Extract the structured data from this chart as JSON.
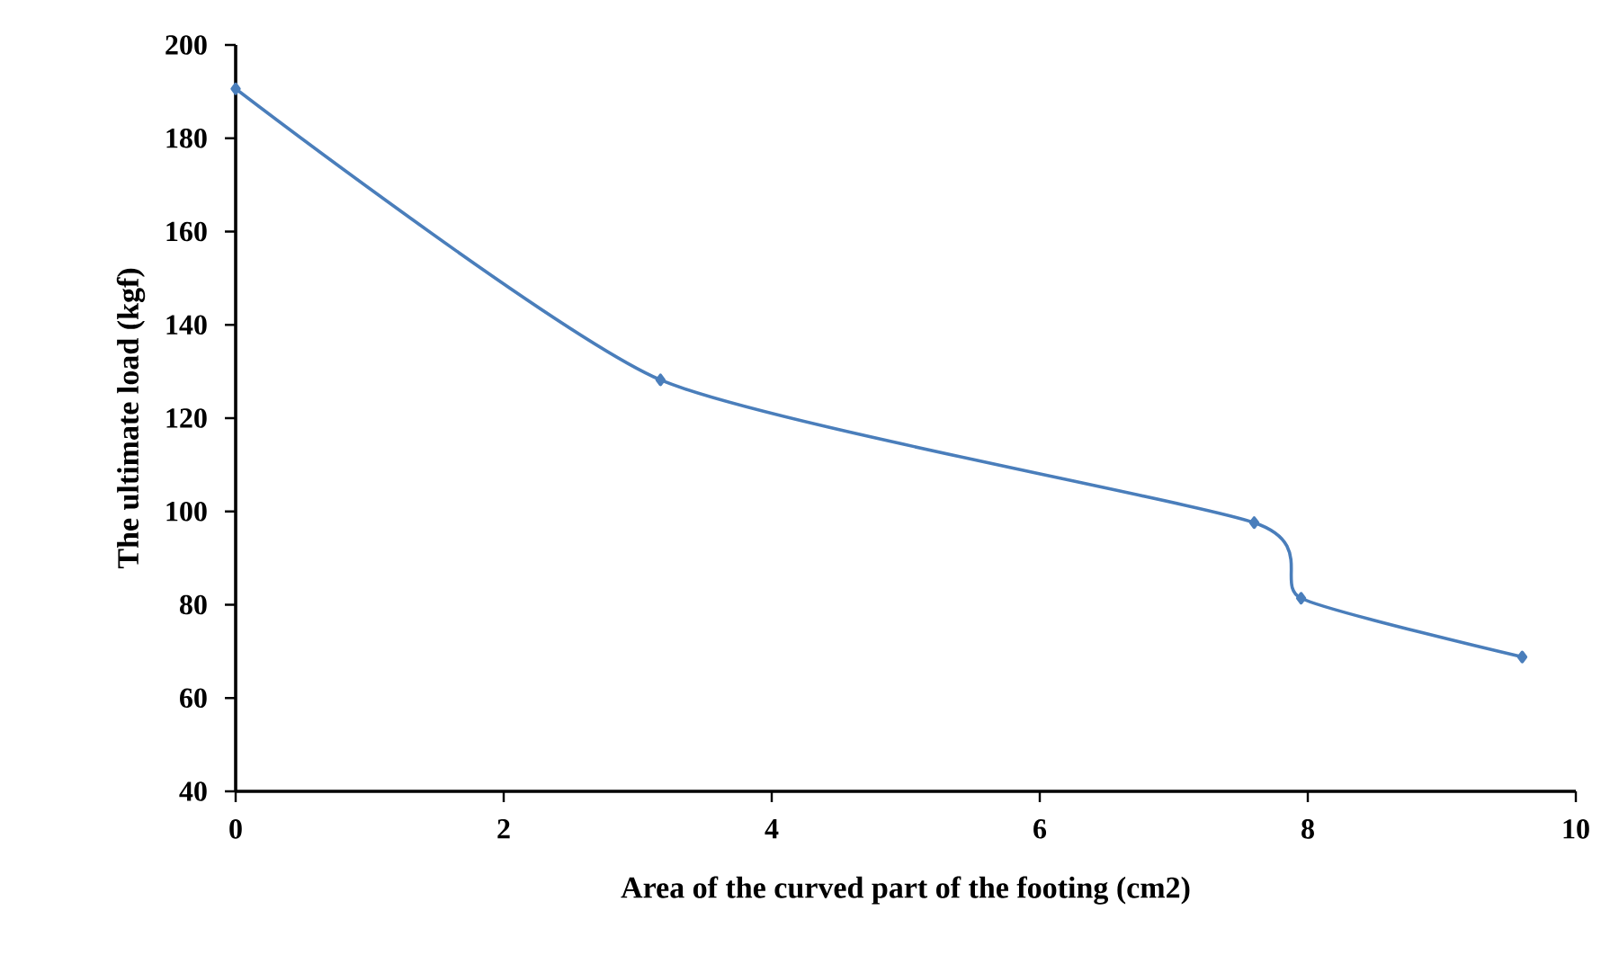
{
  "chart_data": {
    "type": "line",
    "xlabel": "Area  of the  curved part of the footing (cm2)",
    "ylabel": "The  ultimate load (kgf)",
    "x": [
      0,
      3.17,
      7.6,
      7.95,
      9.6
    ],
    "series": [
      {
        "color": "#4a7ebb",
        "values": [
          190.6,
          128.2,
          97.6,
          81.4,
          68.8
        ]
      }
    ],
    "xlim": [
      0,
      10
    ],
    "xticks": [
      0,
      2,
      4,
      6,
      8,
      10
    ],
    "ylim": [
      40,
      200
    ],
    "yticks": [
      40,
      60,
      80,
      100,
      120,
      140,
      160,
      180,
      200
    ],
    "marker": "diamond",
    "line_style": "solid",
    "grid": false
  }
}
